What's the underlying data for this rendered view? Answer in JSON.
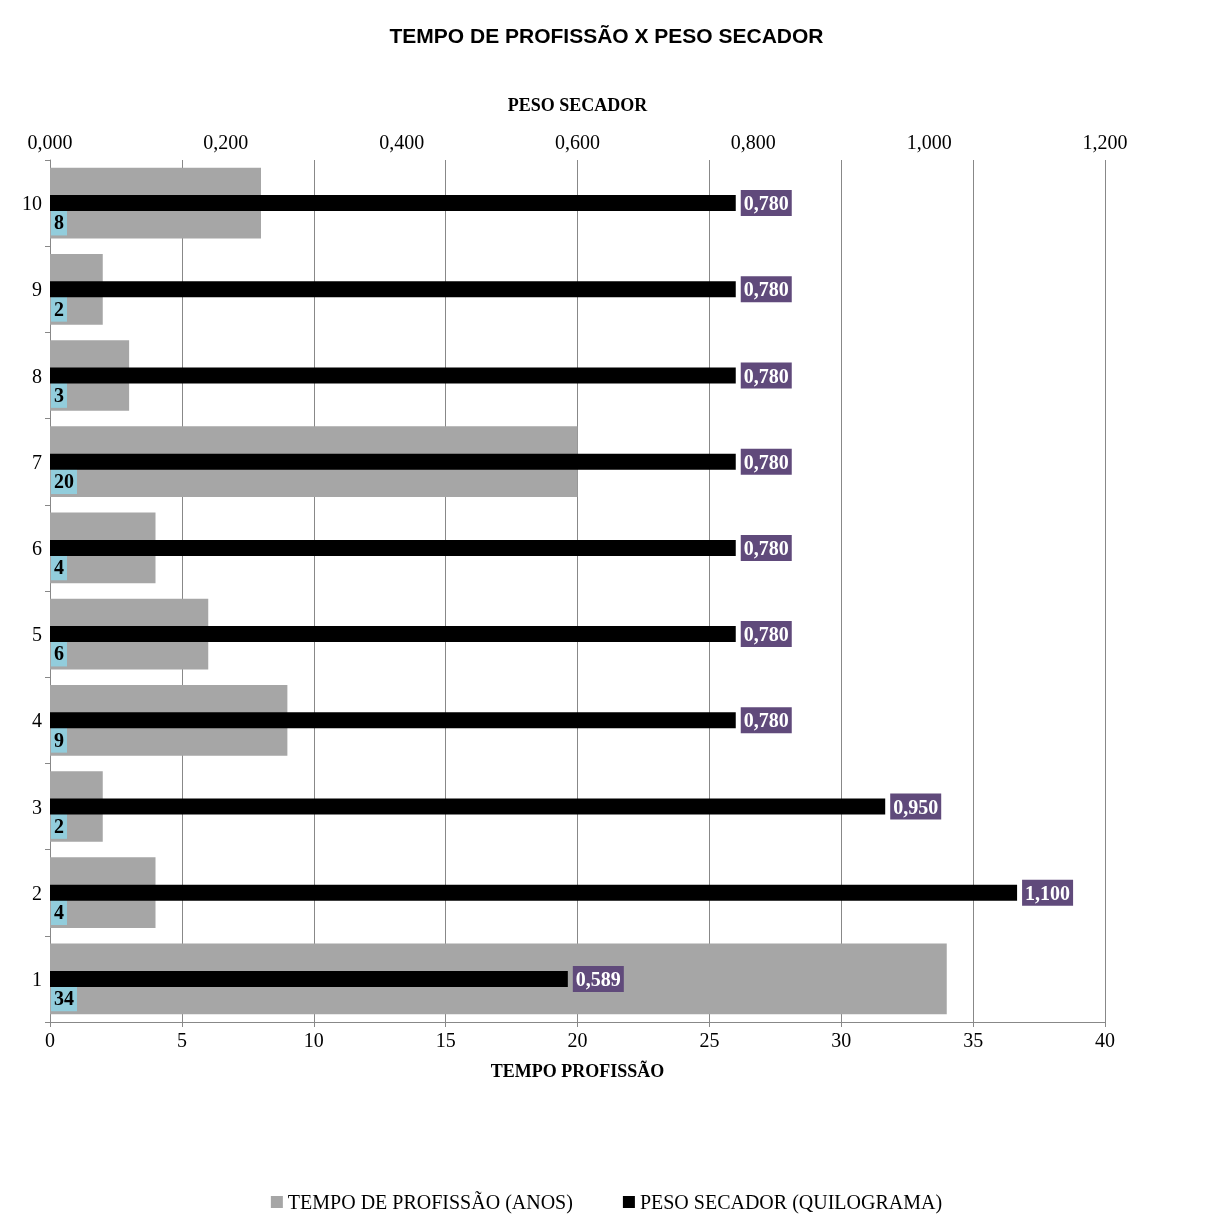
{
  "chart_data": {
    "type": "bar",
    "orientation": "horizontal",
    "title": "TEMPO DE PROFISSÃO X PESO SECADOR",
    "xlabel": "TEMPO PROFISSÃO",
    "x2label": "PESO SECADOR",
    "categories": [
      "10",
      "9",
      "8",
      "7",
      "6",
      "5",
      "4",
      "3",
      "2",
      "1"
    ],
    "series": [
      {
        "name": "TEMPO DE PROFISSÃO (ANOS)",
        "color": "#a6a6a6",
        "values": [
          8,
          2,
          3,
          20,
          4,
          6,
          9,
          2,
          4,
          34
        ],
        "value_labels": [
          "8",
          "2",
          "3",
          "20",
          "4",
          "6",
          "9",
          "2",
          "4",
          "34"
        ]
      },
      {
        "name": "PESO SECADOR (QUILOGRAMA)",
        "color": "#000000",
        "axis": "x2",
        "values": [
          0.78,
          0.78,
          0.78,
          0.78,
          0.78,
          0.78,
          0.78,
          0.95,
          1.1,
          0.589
        ],
        "value_labels": [
          "0,780",
          "0,780",
          "0,780",
          "0,780",
          "0,780",
          "0,780",
          "0,780",
          "0,950",
          "1,100",
          "0,589"
        ]
      }
    ],
    "xlim": [
      0,
      40
    ],
    "xticks": [
      0,
      5,
      10,
      15,
      20,
      25,
      30,
      35,
      40
    ],
    "x2lim": [
      0,
      1.2
    ],
    "x2ticks": [
      {
        "value": 0,
        "label": "0,000"
      },
      {
        "value": 0.2,
        "label": "0,200"
      },
      {
        "value": 0.4,
        "label": "0,400"
      },
      {
        "value": 0.6,
        "label": "0,600"
      },
      {
        "value": 0.8,
        "label": "0,800"
      },
      {
        "value": 1,
        "label": "1,000"
      },
      {
        "value": 1.2,
        "label": "1,200"
      }
    ],
    "grid": "x",
    "legend": "bottom"
  }
}
